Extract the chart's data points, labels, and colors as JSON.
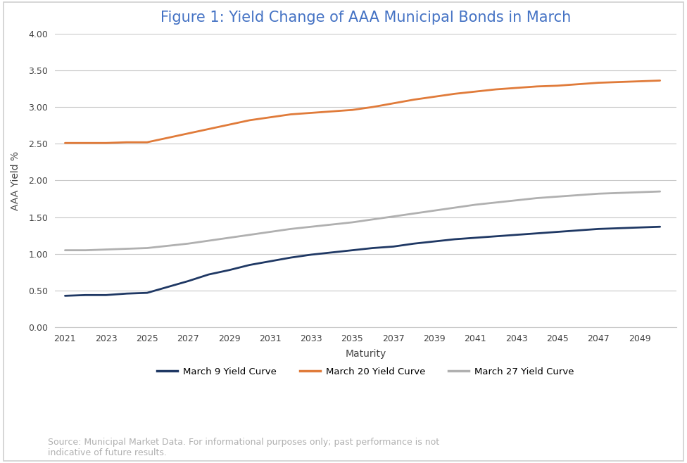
{
  "title": "Figure 1: Yield Change of AAA Municipal Bonds in March",
  "xlabel": "Maturity",
  "ylabel": "AAA Yield %",
  "source_text": "Source: Municipal Market Data. For informational purposes only; past performance is not\nindicative of future results.",
  "x_labels": [
    "2021",
    "2023",
    "2025",
    "2027",
    "2029",
    "2031",
    "2033",
    "2035",
    "2037",
    "2039",
    "2041",
    "2043",
    "2045",
    "2047",
    "2049"
  ],
  "x_values": [
    2021,
    2022,
    2023,
    2024,
    2025,
    2026,
    2027,
    2028,
    2029,
    2030,
    2031,
    2032,
    2033,
    2034,
    2035,
    2036,
    2037,
    2038,
    2039,
    2040,
    2041,
    2042,
    2043,
    2044,
    2045,
    2046,
    2047,
    2048,
    2049,
    2050
  ],
  "march9": [
    0.43,
    0.44,
    0.44,
    0.46,
    0.47,
    0.55,
    0.63,
    0.72,
    0.78,
    0.85,
    0.9,
    0.95,
    0.99,
    1.02,
    1.05,
    1.08,
    1.1,
    1.14,
    1.17,
    1.2,
    1.22,
    1.24,
    1.26,
    1.28,
    1.3,
    1.32,
    1.34,
    1.35,
    1.36,
    1.37
  ],
  "march20": [
    2.51,
    2.51,
    2.51,
    2.52,
    2.52,
    2.58,
    2.64,
    2.7,
    2.76,
    2.82,
    2.86,
    2.9,
    2.92,
    2.94,
    2.96,
    3.0,
    3.05,
    3.1,
    3.14,
    3.18,
    3.21,
    3.24,
    3.26,
    3.28,
    3.29,
    3.31,
    3.33,
    3.34,
    3.35,
    3.36
  ],
  "march27": [
    1.05,
    1.05,
    1.06,
    1.07,
    1.08,
    1.11,
    1.14,
    1.18,
    1.22,
    1.26,
    1.3,
    1.34,
    1.37,
    1.4,
    1.43,
    1.47,
    1.51,
    1.55,
    1.59,
    1.63,
    1.67,
    1.7,
    1.73,
    1.76,
    1.78,
    1.8,
    1.82,
    1.83,
    1.84,
    1.85
  ],
  "color_march9": "#1f3864",
  "color_march20": "#e07b3a",
  "color_march27": "#b0b0b0",
  "ylim": [
    0.0,
    4.0
  ],
  "yticks": [
    0.0,
    0.5,
    1.0,
    1.5,
    2.0,
    2.5,
    3.0,
    3.5,
    4.0
  ],
  "background_color": "#ffffff",
  "plot_bg_color": "#ffffff",
  "grid_color": "#c8c8c8",
  "border_color": "#d0d0d0",
  "title_color": "#4472c4",
  "title_fontsize": 15,
  "axis_label_fontsize": 10,
  "tick_fontsize": 9,
  "legend_fontsize": 9.5,
  "source_fontsize": 9,
  "line_width": 2.0,
  "xlim": [
    2020.5,
    2050.8
  ]
}
